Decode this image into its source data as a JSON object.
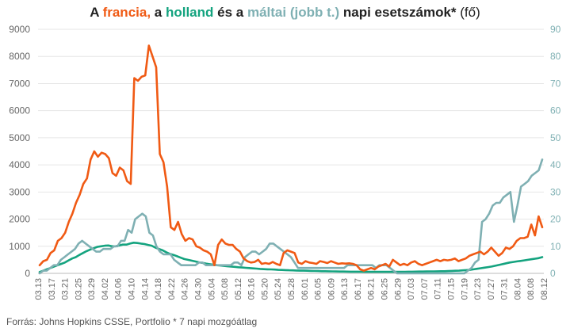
{
  "title": {
    "p1": "A ",
    "france": "francia,",
    "p2": " a ",
    "holland": "holland",
    "p3": " és a ",
    "malta": "máltai (jobb t.)",
    "p4": " napi esetszámok*",
    "p5": " (fő)"
  },
  "source": "Forrás: Johns Hopkins CSSE, Portfolio  * 7 napi mozgóátlag",
  "colors": {
    "france": "#f05a14",
    "netherlands": "#14a37f",
    "malta": "#7fb0b3",
    "grid": "#e6e6e6",
    "text": "#666666"
  },
  "chart_data": {
    "type": "line",
    "x_labels": [
      "03.13",
      "03.17",
      "03.21",
      "03.25",
      "03.29",
      "04.02",
      "04.06",
      "04.10",
      "04.14",
      "04.18",
      "04.22",
      "04.26",
      "04.30",
      "05.04",
      "05.08",
      "05.12",
      "05.16",
      "05.20",
      "05.24",
      "05.28",
      "06.01",
      "06.05",
      "06.09",
      "06.13",
      "06.17",
      "06.21",
      "06.25",
      "06.29",
      "07.03",
      "07.07",
      "07.11",
      "07.15",
      "07.19",
      "07.23",
      "07.27",
      "07.31",
      "08.04",
      "08.08",
      "08.12"
    ],
    "y_left": {
      "min": 0,
      "max": 9000,
      "ticks": [
        0,
        1000,
        2000,
        3000,
        4000,
        5000,
        6000,
        7000,
        8000,
        9000
      ]
    },
    "y_right": {
      "min": 0,
      "max": 90,
      "ticks": [
        0,
        10,
        20,
        30,
        40,
        50,
        60,
        70,
        80,
        90
      ]
    },
    "grid": "horizontal",
    "series": [
      {
        "name": "francia",
        "axis": "left",
        "color": "#f05a14",
        "values": [
          300,
          450,
          500,
          750,
          850,
          1200,
          1300,
          1500,
          1900,
          2200,
          2600,
          2900,
          3300,
          3500,
          4200,
          4500,
          4300,
          4450,
          4400,
          4250,
          3700,
          3600,
          3900,
          3800,
          3400,
          3300,
          7200,
          7100,
          7250,
          7300,
          8400,
          8000,
          7600,
          4400,
          4100,
          3200,
          1700,
          1600,
          1900,
          1450,
          1200,
          1300,
          1250,
          1000,
          950,
          850,
          800,
          700,
          300,
          1050,
          1250,
          1100,
          1050,
          1050,
          900,
          800,
          550,
          450,
          400,
          420,
          500,
          350,
          380,
          350,
          420,
          350,
          300,
          750,
          850,
          800,
          750,
          400,
          350,
          450,
          400,
          380,
          350,
          450,
          420,
          380,
          450,
          400,
          350,
          370,
          360,
          370,
          350,
          300,
          150,
          100,
          150,
          200,
          150,
          250,
          300,
          350,
          250,
          500,
          400,
          300,
          350,
          300,
          400,
          450,
          350,
          300,
          350,
          400,
          450,
          500,
          450,
          500,
          480,
          500,
          550,
          450,
          500,
          550,
          650,
          700,
          750,
          800,
          700,
          800,
          950,
          800,
          650,
          750,
          950,
          900,
          1000,
          1200,
          1300,
          1300,
          1350,
          1800,
          1400,
          2100,
          1700
        ]
      },
      {
        "name": "holland",
        "axis": "left",
        "color": "#14a37f",
        "values": [
          50,
          100,
          150,
          200,
          250,
          300,
          350,
          400,
          480,
          550,
          600,
          680,
          750,
          820,
          880,
          930,
          980,
          1000,
          1020,
          1030,
          1000,
          1000,
          1030,
          1060,
          1060,
          1100,
          1130,
          1120,
          1100,
          1080,
          1050,
          1020,
          950,
          900,
          850,
          780,
          720,
          680,
          630,
          580,
          530,
          500,
          470,
          440,
          410,
          390,
          360,
          340,
          320,
          300,
          290,
          275,
          260,
          250,
          240,
          225,
          215,
          205,
          195,
          185,
          175,
          165,
          155,
          150,
          145,
          140,
          130,
          125,
          120,
          115,
          110,
          105,
          100,
          100,
          95,
          90,
          88,
          85,
          80,
          78,
          75,
          72,
          70,
          68,
          66,
          64,
          62,
          60,
          60,
          58,
          55,
          55,
          55,
          55,
          55,
          55,
          55,
          55,
          55,
          55,
          56,
          58,
          60,
          62,
          64,
          66,
          68,
          70,
          72,
          74,
          76,
          78,
          80,
          85,
          90,
          95,
          100,
          110,
          120,
          130,
          150,
          170,
          190,
          210,
          230,
          250,
          280,
          310,
          340,
          370,
          400,
          420,
          440,
          460,
          480,
          500,
          520,
          540,
          560,
          600
        ]
      },
      {
        "name": "máltai",
        "axis": "right",
        "color": "#7fb0b3",
        "values": [
          0,
          1,
          1,
          2,
          3,
          3,
          5,
          6,
          7,
          8,
          9,
          11,
          12,
          11,
          10,
          9,
          8,
          8,
          9,
          9,
          9,
          10,
          10,
          12,
          12,
          16,
          15,
          20,
          21,
          22,
          21,
          15,
          14,
          10,
          8,
          7,
          7,
          7,
          5,
          4,
          3,
          3,
          3,
          3,
          3,
          4,
          4,
          3,
          3,
          3,
          3,
          3,
          3,
          3,
          3,
          4,
          4,
          3,
          6,
          7,
          8,
          8,
          7,
          8,
          9,
          11,
          11,
          10,
          9,
          8,
          7,
          6,
          4,
          2,
          2,
          2,
          2,
          2,
          2,
          2,
          2,
          2,
          2,
          2,
          2,
          2,
          2,
          3,
          3,
          3,
          3,
          3,
          3,
          3,
          3,
          2,
          3,
          3,
          3,
          2,
          1,
          0,
          0,
          0,
          0,
          0,
          0,
          0,
          0,
          0,
          0,
          0,
          0,
          0,
          0,
          0,
          0,
          0,
          0,
          0,
          0,
          1,
          2,
          4,
          5,
          19,
          20,
          22,
          25,
          26,
          26,
          28,
          29,
          30,
          19,
          25,
          32,
          33,
          34,
          36,
          37,
          38,
          42
        ]
      }
    ]
  }
}
